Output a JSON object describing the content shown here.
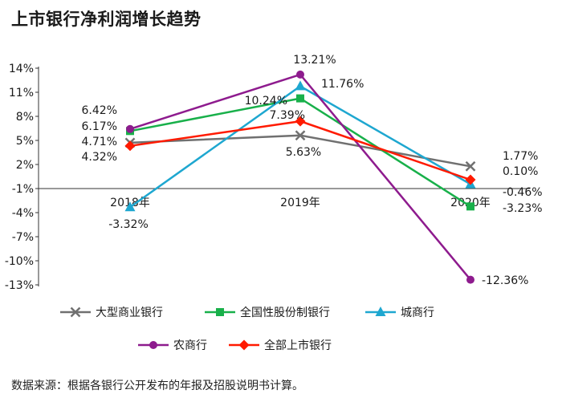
{
  "header": {
    "title": "上市银行净利润增长趋势"
  },
  "footer": {
    "source": "数据来源：根据各银行公开发布的年报及招股说明书计算。"
  },
  "chart_data": {
    "type": "line",
    "title": "上市银行净利润增长趋势",
    "categories": [
      "2018年",
      "2019年",
      "2020年"
    ],
    "y_ticks": [
      "14%",
      "11%",
      "8%",
      "5%",
      "2%",
      "-1%",
      "-4%",
      "-7%",
      "-10%",
      "-13%"
    ],
    "ylim": [
      -13,
      14
    ],
    "grid": false,
    "legend_position": "bottom",
    "series": [
      {
        "name": "大型商业银行",
        "values": [
          4.71,
          5.63,
          1.77
        ],
        "labels": [
          "4.71%",
          "5.63%",
          "1.77%"
        ],
        "color": "#707070",
        "marker": "x"
      },
      {
        "name": "全国性股份制银行",
        "values": [
          6.17,
          10.24,
          -3.23
        ],
        "labels": [
          "6.17%",
          "10.24%",
          "-3.23%"
        ],
        "color": "#18b04a",
        "marker": "square"
      },
      {
        "name": "城商行",
        "values": [
          -3.32,
          11.76,
          -0.46
        ],
        "labels": [
          "-3.32%",
          "11.76%",
          "-0.46%"
        ],
        "color": "#1ea7d0",
        "marker": "triangle"
      },
      {
        "name": "农商行",
        "values": [
          6.42,
          13.21,
          -12.36
        ],
        "labels": [
          "6.42%",
          "13.21%",
          "-12.36%"
        ],
        "color": "#8e1b8e",
        "marker": "circle"
      },
      {
        "name": "全部上市银行",
        "values": [
          4.32,
          7.39,
          0.1
        ],
        "labels": [
          "4.32%",
          "7.39%",
          "0.10%"
        ],
        "color": "#ff1a00",
        "marker": "diamond"
      }
    ]
  }
}
